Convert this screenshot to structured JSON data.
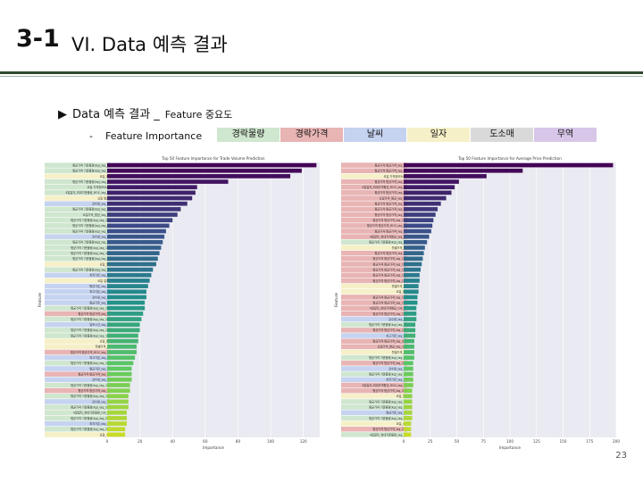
{
  "slide": {
    "number": "3-1",
    "title": "VI. Data 예측 결과",
    "heading_arrow": "▶",
    "heading_main": "Data 예측 결과 _",
    "heading_small": "Feature 중요도",
    "feature_dash": "-",
    "feature_label": "Feature Importance",
    "page_number": "23"
  },
  "legend": [
    {
      "label": "경락물량",
      "color": "#cfe6cf"
    },
    {
      "label": "경락가격",
      "color": "#e8b4b4"
    },
    {
      "label": "날씨",
      "color": "#c5d3f0"
    },
    {
      "label": "일자",
      "color": "#f6f0c8"
    },
    {
      "label": "도소매",
      "color": "#d9d9d9"
    },
    {
      "label": "무역",
      "color": "#d8c6e8"
    }
  ],
  "chart_data": [
    {
      "type": "bar",
      "title": "Top 50 Feature Importance for Trade Volume Prediction",
      "xlabel": "Importance",
      "ylabel": "Feature",
      "xlim": [
        0,
        130
      ],
      "xticks": [
        "0",
        "20",
        "40",
        "60",
        "80",
        "100",
        "120"
      ],
      "orientation": "horizontal",
      "values": [
        128,
        119,
        112,
        74,
        55,
        54,
        52,
        49,
        45,
        43,
        40,
        38,
        36,
        35,
        34,
        33,
        32,
        31,
        30,
        28,
        27,
        26,
        25,
        24,
        24,
        23,
        23,
        22,
        21,
        20,
        20,
        19,
        19,
        18,
        18,
        17,
        16,
        15,
        15,
        15,
        14,
        14,
        13,
        13,
        13,
        12,
        12,
        12,
        11,
        11
      ],
      "categories": [
        "평균가격 기준물량(kg)_lag_1",
        "평균가격 기준물량(kg)_lag_2",
        "요일_토",
        "평균가격 기준물량(kg)_lag_7",
        "요일 가격정보요소",
        "4일일자_최대기준물량_ROC_lag_1",
        "요일 평균",
        "강수량_lag_1",
        "평균가격 기준물량(kg)_lag_3",
        "요일가격_평균_lag_7",
        "평균가격 기준물량(kg)_lag_14",
        "평균가격 기준물량(kg)_lag_5",
        "평균가격 기준물량(kg)_lag_6",
        "강수량_lag_3",
        "평균가격 기준물량(kg)_lag_4",
        "평균가격 기준물량(kg)_lag_10",
        "평균가격 기준물량(kg)_lag_12",
        "평균가격 기준물량(kg)_lag_9",
        "요일_월",
        "평균가격 기준물량(kg)_lag_8",
        "최저기온_lag_1",
        "요일 일자",
        "평균기온_lag_1",
        "최고기온_lag_2",
        "강수량_lag_2",
        "평균기온_lag_3",
        "평균가격 기준물량(kg)_lag_13",
        "평균가격 평균가격_lag_1",
        "평균가격 기준물량(kg)_lag_11",
        "일조시간_lag_1",
        "평균가격 기준물량(kg)_lag_15",
        "평균가격 기준물량(kg)_lag_16",
        "요일_화",
        "월별가격_1",
        "평균가격 평균가격_ROC_lag_1",
        "최고기온_lag_3",
        "평균가격 기준물량(kg)_lag_17",
        "평균기온_lag_2",
        "평균가격 평균가격_lag_2",
        "강수량_lag_4",
        "평균가격 기준물량(kg)_lag_18",
        "평균가격 평균가격_lag_3",
        "평균가격 기준물량(kg)_lag_19",
        "강수량_lag_5",
        "평균가격 기준물량(kg)_lag_20",
        "4일일자_최대기준물량_roll_3",
        "평균가격 기준물량(kg)_lag_21",
        "최저기온_lag_2",
        "평균가격 기준물량(kg)_lag_22",
        "요일_수"
      ],
      "colors": [
        "#cfe6cf",
        "#cfe6cf",
        "#f6f0c8",
        "#cfe6cf",
        "#cfe6cf",
        "#cfe6cf",
        "#f6f0c8",
        "#c5d3f0",
        "#cfe6cf",
        "#cfe6cf",
        "#cfe6cf",
        "#cfe6cf",
        "#cfe6cf",
        "#c5d3f0",
        "#cfe6cf",
        "#cfe6cf",
        "#cfe6cf",
        "#cfe6cf",
        "#f6f0c8",
        "#cfe6cf",
        "#c5d3f0",
        "#f6f0c8",
        "#c5d3f0",
        "#c5d3f0",
        "#c5d3f0",
        "#c5d3f0",
        "#cfe6cf",
        "#e8b4b4",
        "#cfe6cf",
        "#c5d3f0",
        "#cfe6cf",
        "#cfe6cf",
        "#f6f0c8",
        "#f6f0c8",
        "#e8b4b4",
        "#c5d3f0",
        "#cfe6cf",
        "#c5d3f0",
        "#e8b4b4",
        "#c5d3f0",
        "#cfe6cf",
        "#e8b4b4",
        "#cfe6cf",
        "#c5d3f0",
        "#cfe6cf",
        "#cfe6cf",
        "#cfe6cf",
        "#c5d3f0",
        "#cfe6cf",
        "#f6f0c8"
      ]
    },
    {
      "type": "bar",
      "title": "Top 50 Feature Importance for Average Price Prediction",
      "xlabel": "Importance",
      "ylabel": "Feature",
      "xlim": [
        0,
        200
      ],
      "xticks": [
        "0",
        "25",
        "50",
        "75",
        "100",
        "125",
        "150",
        "175",
        "200"
      ],
      "orientation": "horizontal",
      "values": [
        197,
        112,
        78,
        52,
        48,
        45,
        40,
        35,
        32,
        30,
        28,
        27,
        26,
        24,
        22,
        20,
        19,
        18,
        17,
        16,
        15,
        15,
        14,
        14,
        13,
        13,
        12,
        12,
        12,
        11,
        11,
        11,
        10,
        10,
        10,
        10,
        9,
        9,
        9,
        9,
        9,
        8,
        8,
        8,
        8,
        8,
        8,
        7,
        7,
        7
      ],
      "categories": [
        "평균가격 평균가격_lag_1",
        "평균가격 평균가격_lag_2",
        "요일 가격정보요소",
        "평균가격 평균가격_lag_3",
        "4일일자_최대가격평균_ROC_lag_1",
        "평균가격 평균가격_lag_7",
        "요일가격_평균_lag_7",
        "평균가격 평균가격_lag_4",
        "평균가격 평균가격_lag_5",
        "평균가격 평균가격_lag_6",
        "평균가격 평균가격_lag_14",
        "평균가격 평균가격_ROC_lag_1",
        "평균가격 평균가격_lag_8",
        "4일일자_최대가격평균_lag_1",
        "평균가격 기준물량(kg)_lag_1",
        "월별가격_1",
        "평균가격 평균가격_lag_9",
        "평균가격 평균가격_lag_10",
        "평균가격 평균가격_lag_11",
        "평균가격 평균가격_lag_12",
        "평균가격 평균가격_lag_13",
        "평균가격 평균가격_lag_15",
        "월별가격_2",
        "요일_토",
        "평균가격 평균가격_lag_16",
        "평균가격 평균가격_lag_17",
        "4일일자_최대가격평균_roll_3",
        "평균가격 평균가격_lag_18",
        "강수량_lag_1",
        "평균가격 기준물량(kg)_lag_2",
        "평균가격 평균가격_lag_19",
        "최고기온_lag_1",
        "평균가격 평균가격_lag_20",
        "요일가격_평균_lag_14",
        "월별가격_3",
        "평균가격 기준물량(kg)_lag_3",
        "평균가격 평균가격_lag_21",
        "강수량_lag_2",
        "평균가격 기준물량(kg)_lag_7",
        "최저기온_lag_1",
        "4일일자_최대가격평균_ROC_lag_7",
        "평균가격 평균가격_lag_22",
        "요일_월",
        "평균가격 기준물량(kg)_lag_4",
        "평균가격 기준물량(kg)_lag_5",
        "평균기온_lag_1",
        "평균가격 기준물량(kg)_lag_6",
        "요일_수",
        "평균가격 평균가격_lag_23",
        "4일일자_최대기준물량_lag_1"
      ],
      "colors": [
        "#e8b4b4",
        "#e8b4b4",
        "#f6f0c8",
        "#e8b4b4",
        "#e8b4b4",
        "#e8b4b4",
        "#e8b4b4",
        "#e8b4b4",
        "#e8b4b4",
        "#e8b4b4",
        "#e8b4b4",
        "#e8b4b4",
        "#e8b4b4",
        "#e8b4b4",
        "#cfe6cf",
        "#f6f0c8",
        "#e8b4b4",
        "#e8b4b4",
        "#e8b4b4",
        "#e8b4b4",
        "#e8b4b4",
        "#e8b4b4",
        "#f6f0c8",
        "#f6f0c8",
        "#e8b4b4",
        "#e8b4b4",
        "#e8b4b4",
        "#e8b4b4",
        "#c5d3f0",
        "#cfe6cf",
        "#e8b4b4",
        "#c5d3f0",
        "#e8b4b4",
        "#e8b4b4",
        "#f6f0c8",
        "#cfe6cf",
        "#e8b4b4",
        "#c5d3f0",
        "#cfe6cf",
        "#c5d3f0",
        "#e8b4b4",
        "#e8b4b4",
        "#f6f0c8",
        "#cfe6cf",
        "#cfe6cf",
        "#c5d3f0",
        "#cfe6cf",
        "#f6f0c8",
        "#e8b4b4",
        "#cfe6cf"
      ]
    }
  ]
}
